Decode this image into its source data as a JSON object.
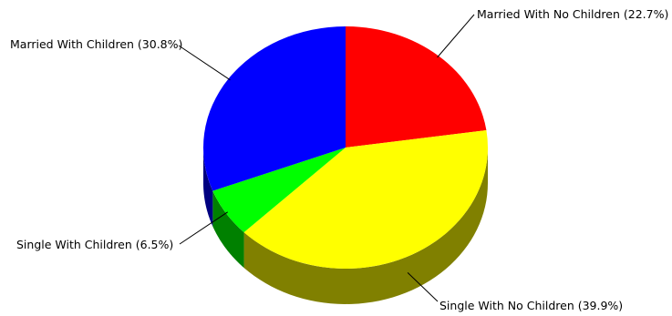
{
  "chart_data": {
    "type": "pie",
    "style": "3d",
    "title": "",
    "slices": [
      {
        "label": "Married With No Children (22.7%)",
        "value": 22.7,
        "color": "#ff0000"
      },
      {
        "label": "Single With No Children (39.9%)",
        "value": 39.9,
        "color": "#ffff00"
      },
      {
        "label": "Single With Children (6.5%)",
        "value": 6.5,
        "color": "#00ff00"
      },
      {
        "label": "Married With Children (30.8%)",
        "value": 30.8,
        "color": "#0000ff"
      }
    ],
    "start_angle": "top",
    "direction": "clockwise",
    "legend": "none"
  }
}
